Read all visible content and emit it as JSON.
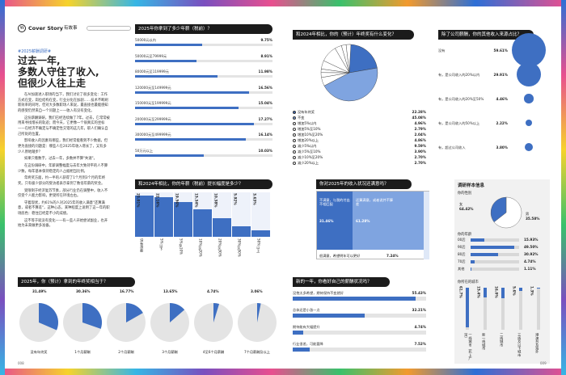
{
  "header": {
    "magazine_mark": "Cover Story",
    "section": "有故事",
    "tag": "#2025薪酬调研#",
    "headline_lines": [
      "过去一年,",
      "多数人守住了收入,",
      "但很少人往上走"
    ]
  },
  "article": {
    "paragraphs": [
      "在AI加速进入职场的当下，我们讨论了很多变化：工作方式在变，岗位结构在变，行业分化在加剧……技术不断刷新效率的同时，但对大多数职场人来说，最直接也最能感知的感受仍然来自一个问题上——收入有没有变化。",
      "这份薪酬调研，我们已经连续做了7年。过去，它常常被用来寻找增长的轨迹；而今天，它更像一个很真实的坐标——在经济不确定与不确定性交错的这几年，职人们确认自己所处的位置。",
      "影响收入的因素有哪些，我们经常能看到不少数据，但更为直接的问题是：哪些人在2025年收入增长了，又有多少人原地踏步？",
      "如果只看数字，过去一年，多数并不算\"失速\"。",
      "在这份调研中，年薪调整幅度与去年大致持平的人不算少数，每年基本保持稳定的人占据相当比例。",
      "年终奖方面，约一半的人获得了1个月到3个月的年终奖。只有极少部分的受访者表示拿到了数倍年薪的奖金。",
      "受限制于经济复苏节奏，部分行业仍在调整中，收入不仅受个人能力影响，更受所在环境左右。",
      "守着现状，约61%的人对2025年的收入满意\"还算满意，或者不算差\"，这种心态，某种程度上说明了这一年的职场底色：稳住已经是不小的成绩。",
      "这不等于就没有变化——有一些人开始尝试副业，也开始为未来做更多准备。"
    ]
  },
  "charts": {
    "salary": {
      "title": "2025年你拿到了多少年薪（税前）？",
      "rows": [
        {
          "label": "50000元以内",
          "value": 9.75,
          "display": "9.75%"
        },
        {
          "label": "50000元至79999元",
          "value": 8.91,
          "display": "8.91%"
        },
        {
          "label": "80000元至119999元",
          "value": 11.98,
          "display": "11.98%"
        },
        {
          "label": "120000元至149999元",
          "value": 16.56,
          "display": "16.56%"
        },
        {
          "label": "150000元至199999元",
          "value": 15.04,
          "display": "15.04%"
        },
        {
          "label": "200000元至299999元",
          "value": 17.27,
          "display": "17.27%"
        },
        {
          "label": "300000元至499999元",
          "value": 16.14,
          "display": "16.14%"
        },
        {
          "label": "50万元以上",
          "value": 10.03,
          "display": "10.03%"
        }
      ]
    },
    "raise": {
      "title": "和2024年相比，你的年薪（税前）提长幅度是多少？",
      "cols": [
        {
          "label": "没有涨薪",
          "value": 23.01,
          "display": "23.01%"
        },
        {
          "label": "5%以下",
          "value": 22.16,
          "display": "22.16%"
        },
        {
          "label": "5%至10%",
          "value": 19.56,
          "display": "19.56%"
        },
        {
          "label": "10%至20%",
          "value": 15.34,
          "display": "15.34%"
        },
        {
          "label": "20%至30%",
          "value": 10.38,
          "display": "10.38%"
        },
        {
          "label": "30%至50%",
          "value": 5.92,
          "display": "5.92%"
        },
        {
          "label": "50%以上",
          "value": 3.63,
          "display": "3.63%"
        }
      ]
    },
    "bonus": {
      "title": "2025年，你（预计）拿到的年终奖相当于？",
      "items": [
        {
          "label": "没有年终奖",
          "value": 31.49,
          "display": "31.49%"
        },
        {
          "label": "1个月薪酬",
          "value": 30.36,
          "display": "30.36%"
        },
        {
          "label": "2个月薪酬",
          "value": 16.77,
          "display": "16.77%"
        },
        {
          "label": "3个月薪酬",
          "value": 13.65,
          "display": "13.65%"
        },
        {
          "label": "4至6个月薪酬",
          "value": 4.74,
          "display": "4.74%"
        },
        {
          "label": "7个月薪酬及以上",
          "value": 3.06,
          "display": "3.06%"
        }
      ]
    },
    "change_pie": {
      "title": "和2024年相比，你的（预计）年终奖有什么变化？",
      "slices": [
        {
          "label": "没有年终奖",
          "value": 22.28,
          "display": "22.28%",
          "color": "#3e6fc2"
        },
        {
          "label": "不变",
          "value": 45.08,
          "display": "45.08%",
          "color": "#7fa4e0"
        },
        {
          "label": "增加5%以内",
          "value": 4.96,
          "display": "4.96%",
          "color": "#ffffff"
        },
        {
          "label": "增加5%至10%",
          "value": 2.79,
          "display": "2.79%",
          "color": "#ffffff"
        },
        {
          "label": "增加10%至20%",
          "value": 2.04,
          "display": "2.04%",
          "color": "#ffffff"
        },
        {
          "label": "增加20%以上",
          "value": 4.86,
          "display": "4.86%",
          "color": "#ffffff"
        },
        {
          "label": "减少5%以内",
          "value": 9.59,
          "display": "9.59%",
          "color": "#ffffff"
        },
        {
          "label": "减少5%至10%",
          "value": 3.9,
          "display": "3.90%",
          "color": "#ffffff"
        },
        {
          "label": "减少10%至20%",
          "value": 2.7,
          "display": "2.70%",
          "color": "#ffffff"
        },
        {
          "label": "减少20%以上",
          "value": 2.7,
          "display": "2.70%",
          "color": "#ffffff"
        }
      ]
    },
    "side_income": {
      "title": "除了公司薪酬，你的其他收入来源占比？",
      "rows": [
        {
          "label": "没有",
          "value": 59.61,
          "display": "59.61%"
        },
        {
          "label": "有，是公司收入的20%以内",
          "value": 29.91,
          "display": "29.91%"
        },
        {
          "label": "有，是公司收入的20%至50%",
          "value": 4.46,
          "display": "4.46%"
        },
        {
          "label": "有，是公司收入的50%以上",
          "value": 2.22,
          "display": "2.22%"
        },
        {
          "label": "有，超过公司收入",
          "value": 3.8,
          "display": "3.80%"
        }
      ]
    },
    "expect": {
      "title": "你对2025年的收入状况还满意吗？",
      "left_text": "不满意，与我的付出不相匹配",
      "left_value": "31.46%",
      "mid_text": "还算满意，或者说并不算差",
      "mid_value": "61.28%",
      "bottom_text": "很满意，希望明年可以更好",
      "bottom_value": "7.24%"
    },
    "new_year": {
      "title": "新的一年，你看好自己的薪酬状况吗？",
      "rows": [
        {
          "label": "没抱太多希望，期待保持不变就好",
          "value": 55.43,
          "display": "55.43%"
        },
        {
          "label": "总体还是小涨一点",
          "value": 32.21,
          "display": "32.21%"
        },
        {
          "label": "期待能有大幅提升",
          "value": 4.74,
          "display": "4.74%"
        },
        {
          "label": "行业很差，可能要降",
          "value": 7.52,
          "display": "7.52%"
        }
      ]
    },
    "survey_info": {
      "title": "调研样本信息",
      "gender_label": "你的性别",
      "gender": [
        {
          "label": "女",
          "value": 64.42,
          "display": "64.42%"
        },
        {
          "label": "男",
          "value": 35.58,
          "display": "35.58%"
        }
      ],
      "age_label": "你的年龄",
      "age": [
        {
          "label": "00后",
          "value": 15.93,
          "display": "15.93%"
        },
        {
          "label": "90后",
          "value": 49.5,
          "display": "49.50%"
        },
        {
          "label": "80后",
          "value": 30.92,
          "display": "30.92%"
        },
        {
          "label": "70后",
          "value": 4.74,
          "display": "4.74%"
        },
        {
          "label": "其他",
          "value": 1.11,
          "display": "1.11%"
        }
      ],
      "city_label": "你所在的城市",
      "city": [
        {
          "label": "一线城市（北上广深）",
          "value": 61.7,
          "display": "61.7%"
        },
        {
          "label": "新一线城市",
          "value": 15.4,
          "display": "15.4%"
        },
        {
          "label": "二线城市",
          "value": 16.0,
          "display": "16.0%"
        },
        {
          "label": "三线及以下城市",
          "value": 5.6,
          "display": "5.6%"
        },
        {
          "label": "港澳台及海外",
          "value": 1.3,
          "display": "1.3%"
        }
      ]
    }
  },
  "footer": {
    "left_page": "008",
    "right_page": "009"
  },
  "colors": {
    "accent": "#3e6fc2",
    "accent_light": "#7fa4e0",
    "track": "#e4e4e4",
    "panel_head": "#1b1b1b"
  }
}
